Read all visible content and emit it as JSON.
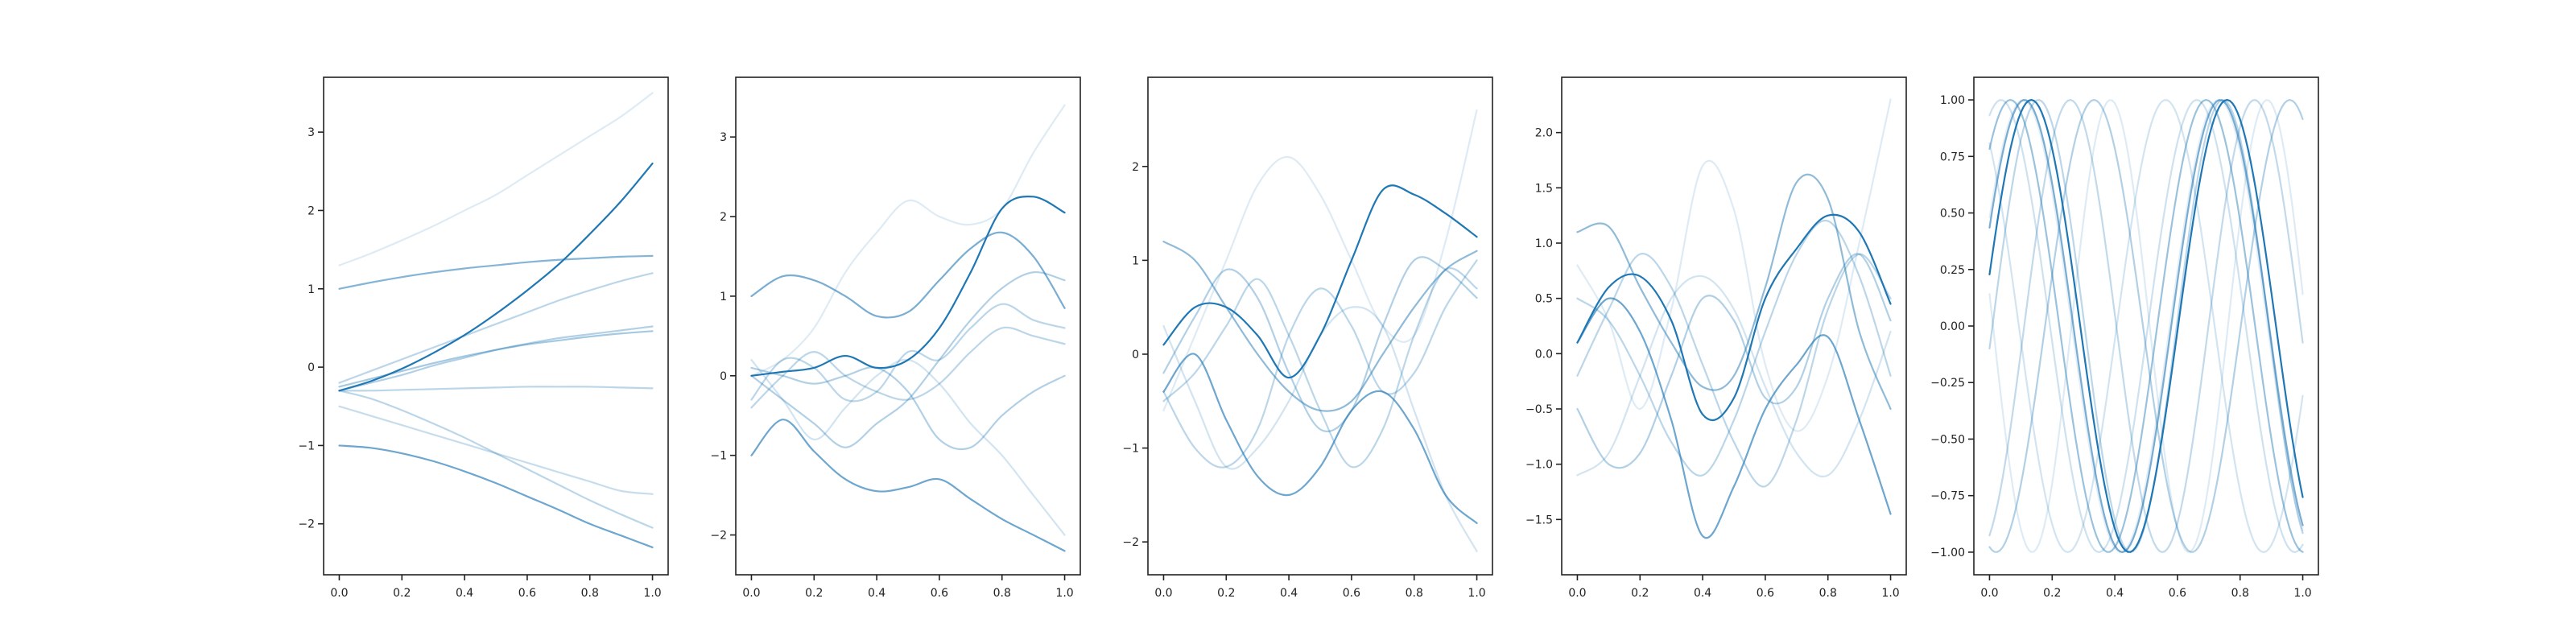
{
  "figure": {
    "background": "#ffffff",
    "axes_color": "#222222",
    "series_color": "#1f77b4"
  },
  "chart_data": [
    {
      "type": "line",
      "title": "",
      "xlabel": "",
      "ylabel": "",
      "xlim": [
        -0.05,
        1.05
      ],
      "ylim": [
        -2.65,
        3.7
      ],
      "xticks": [
        0.0,
        0.2,
        0.4,
        0.6,
        0.8,
        1.0
      ],
      "xtick_labels": [
        "0.0",
        "0.2",
        "0.4",
        "0.6",
        "0.8",
        "1.0"
      ],
      "yticks": [
        -2,
        -1,
        0,
        1,
        2,
        3
      ],
      "ytick_labels": [
        "−2",
        "−1",
        "0",
        "1",
        "2",
        "3"
      ],
      "grid": false,
      "x": [
        0.0,
        0.1,
        0.2,
        0.3,
        0.4,
        0.5,
        0.6,
        0.7,
        0.8,
        0.9,
        1.0
      ],
      "series": [
        {
          "values": [
            1.3,
            1.45,
            1.62,
            1.8,
            2.0,
            2.2,
            2.45,
            2.7,
            2.95,
            3.2,
            3.5
          ],
          "opacity": 0.15
        },
        {
          "values": [
            -0.5,
            -0.62,
            -0.74,
            -0.86,
            -0.98,
            -1.1,
            -1.22,
            -1.34,
            -1.46,
            -1.58,
            -1.62
          ],
          "opacity": 0.25
        },
        {
          "values": [
            -0.3,
            -0.3,
            -0.29,
            -0.28,
            -0.27,
            -0.26,
            -0.25,
            -0.25,
            -0.25,
            -0.26,
            -0.27
          ],
          "opacity": 0.3
        },
        {
          "values": [
            -0.3,
            -0.4,
            -0.55,
            -0.72,
            -0.9,
            -1.1,
            -1.3,
            -1.5,
            -1.7,
            -1.88,
            -2.05
          ],
          "opacity": 0.3
        },
        {
          "values": [
            -0.3,
            -0.2,
            -0.1,
            0.02,
            0.12,
            0.22,
            0.3,
            0.37,
            0.42,
            0.47,
            0.52
          ],
          "opacity": 0.35
        },
        {
          "values": [
            -0.25,
            -0.15,
            -0.05,
            0.05,
            0.14,
            0.22,
            0.29,
            0.34,
            0.39,
            0.43,
            0.46
          ],
          "opacity": 0.4
        },
        {
          "values": [
            -0.2,
            -0.05,
            0.1,
            0.25,
            0.4,
            0.55,
            0.7,
            0.85,
            0.98,
            1.1,
            1.2
          ],
          "opacity": 0.3
        },
        {
          "values": [
            1.0,
            1.08,
            1.15,
            1.21,
            1.26,
            1.3,
            1.34,
            1.37,
            1.39,
            1.41,
            1.42
          ],
          "opacity": 0.55
        },
        {
          "values": [
            -1.0,
            -1.03,
            -1.1,
            -1.2,
            -1.33,
            -1.48,
            -1.65,
            -1.82,
            -2.0,
            -2.15,
            -2.3
          ],
          "opacity": 0.65
        },
        {
          "values": [
            -0.3,
            -0.18,
            -0.02,
            0.18,
            0.41,
            0.68,
            0.98,
            1.31,
            1.7,
            2.12,
            2.6
          ],
          "opacity": 1.0
        }
      ]
    },
    {
      "type": "line",
      "title": "",
      "xlabel": "",
      "ylabel": "",
      "xlim": [
        -0.05,
        1.05
      ],
      "ylim": [
        -2.5,
        3.75
      ],
      "xticks": [
        0.0,
        0.2,
        0.4,
        0.6,
        0.8,
        1.0
      ],
      "xtick_labels": [
        "0.0",
        "0.2",
        "0.4",
        "0.6",
        "0.8",
        "1.0"
      ],
      "yticks": [
        -2,
        -1,
        0,
        1,
        2,
        3
      ],
      "ytick_labels": [
        "−2",
        "−1",
        "0",
        "1",
        "2",
        "3"
      ],
      "grid": false,
      "x": [
        0.0,
        0.1,
        0.2,
        0.3,
        0.4,
        0.5,
        0.6,
        0.7,
        0.8,
        0.9,
        1.0
      ],
      "series": [
        {
          "values": [
            0.0,
            0.2,
            0.6,
            1.3,
            1.8,
            2.2,
            2.0,
            1.9,
            2.1,
            2.8,
            3.4
          ],
          "opacity": 0.15
        },
        {
          "values": [
            0.2,
            -0.3,
            -0.8,
            -0.4,
            0.0,
            0.2,
            -0.1,
            -0.6,
            -1.0,
            -1.5,
            -2.0
          ],
          "opacity": 0.2
        },
        {
          "values": [
            -0.3,
            0.2,
            0.1,
            -0.3,
            -0.2,
            0.3,
            0.2,
            0.6,
            0.9,
            0.7,
            0.6
          ],
          "opacity": 0.3
        },
        {
          "values": [
            -0.4,
            0.0,
            0.3,
            0.0,
            -0.2,
            -0.3,
            -0.1,
            0.3,
            0.6,
            0.5,
            0.4
          ],
          "opacity": 0.3
        },
        {
          "values": [
            0.1,
            0.0,
            -0.1,
            0.0,
            0.1,
            -0.2,
            -0.8,
            -0.9,
            -0.5,
            -0.2,
            0.0
          ],
          "opacity": 0.35
        },
        {
          "values": [
            0.0,
            -0.3,
            -0.6,
            -0.9,
            -0.6,
            -0.3,
            0.2,
            0.7,
            1.1,
            1.3,
            1.2
          ],
          "opacity": 0.35
        },
        {
          "values": [
            1.0,
            1.25,
            1.2,
            1.0,
            0.75,
            0.8,
            1.2,
            1.6,
            1.8,
            1.5,
            0.85
          ],
          "opacity": 0.6
        },
        {
          "values": [
            -1.0,
            -0.55,
            -0.95,
            -1.3,
            -1.45,
            -1.4,
            -1.3,
            -1.55,
            -1.8,
            -2.0,
            -2.2
          ],
          "opacity": 0.65
        },
        {
          "values": [
            0.0,
            0.05,
            0.1,
            0.25,
            0.1,
            0.2,
            0.6,
            1.3,
            2.1,
            2.25,
            2.05
          ],
          "opacity": 1.0
        }
      ]
    },
    {
      "type": "line",
      "title": "",
      "xlabel": "",
      "ylabel": "",
      "xlim": [
        -0.05,
        1.05
      ],
      "ylim": [
        -2.35,
        2.95
      ],
      "xticks": [
        0.0,
        0.2,
        0.4,
        0.6,
        0.8,
        1.0
      ],
      "xtick_labels": [
        "0.0",
        "0.2",
        "0.4",
        "0.6",
        "0.8",
        "1.0"
      ],
      "yticks": [
        -2,
        -1,
        0,
        1,
        2
      ],
      "ytick_labels": [
        "−2",
        "−1",
        "0",
        "1",
        "2"
      ],
      "grid": false,
      "x": [
        0.0,
        0.1,
        0.2,
        0.3,
        0.4,
        0.5,
        0.6,
        0.7,
        0.8,
        0.9,
        1.0
      ],
      "series": [
        {
          "values": [
            -0.6,
            0.2,
            1.0,
            1.8,
            2.1,
            1.7,
            1.0,
            0.3,
            0.2,
            1.2,
            2.6
          ],
          "opacity": 0.15
        },
        {
          "values": [
            0.3,
            -0.5,
            -1.2,
            -1.0,
            -0.5,
            0.2,
            0.5,
            0.3,
            -0.6,
            -1.5,
            -2.1
          ],
          "opacity": 0.2
        },
        {
          "values": [
            -0.5,
            -0.2,
            0.3,
            0.8,
            0.2,
            -0.6,
            -1.2,
            -0.8,
            0.2,
            0.9,
            0.7
          ],
          "opacity": 0.3
        },
        {
          "values": [
            -0.4,
            -1.0,
            -1.2,
            -0.8,
            0.2,
            0.7,
            0.3,
            -0.4,
            -0.2,
            0.5,
            1.0
          ],
          "opacity": 0.3
        },
        {
          "values": [
            -0.2,
            0.4,
            0.9,
            0.6,
            -0.2,
            -0.8,
            -0.6,
            0.3,
            1.0,
            0.9,
            0.6
          ],
          "opacity": 0.35
        },
        {
          "values": [
            1.2,
            1.0,
            0.5,
            0.0,
            -0.4,
            -0.6,
            -0.5,
            0.0,
            0.5,
            0.9,
            1.1
          ],
          "opacity": 0.5
        },
        {
          "values": [
            -0.4,
            0.0,
            -0.7,
            -1.3,
            -1.5,
            -1.2,
            -0.6,
            -0.4,
            -0.8,
            -1.5,
            -1.8
          ],
          "opacity": 0.65
        },
        {
          "values": [
            0.1,
            0.5,
            0.5,
            0.2,
            -0.25,
            0.2,
            1.0,
            1.75,
            1.7,
            1.5,
            1.25
          ],
          "opacity": 1.0
        }
      ]
    },
    {
      "type": "line",
      "title": "",
      "xlabel": "",
      "ylabel": "",
      "xlim": [
        -0.05,
        1.05
      ],
      "ylim": [
        -2.0,
        2.5
      ],
      "xticks": [
        0.0,
        0.2,
        0.4,
        0.6,
        0.8,
        1.0
      ],
      "xtick_labels": [
        "0.0",
        "0.2",
        "0.4",
        "0.6",
        "0.8",
        "1.0"
      ],
      "yticks": [
        -1.5,
        -1.0,
        -0.5,
        0.0,
        0.5,
        1.0,
        1.5,
        2.0
      ],
      "ytick_labels": [
        "−1.5",
        "−1.0",
        "−0.5",
        "0.0",
        "0.5",
        "1.0",
        "1.5",
        "2.0"
      ],
      "grid": false,
      "x": [
        0.0,
        0.1,
        0.2,
        0.3,
        0.4,
        0.5,
        0.6,
        0.7,
        0.8,
        0.9,
        1.0
      ],
      "series": [
        {
          "values": [
            0.8,
            0.3,
            -0.5,
            0.4,
            1.7,
            1.3,
            -0.1,
            -0.7,
            -0.2,
            1.0,
            2.3
          ],
          "opacity": 0.15
        },
        {
          "values": [
            -1.1,
            -0.9,
            -0.2,
            0.5,
            0.7,
            0.4,
            -0.3,
            -0.9,
            -1.1,
            -0.6,
            0.2
          ],
          "opacity": 0.2
        },
        {
          "values": [
            -0.2,
            0.4,
            0.9,
            0.6,
            -0.1,
            -0.8,
            -1.2,
            -0.6,
            0.4,
            0.9,
            0.5
          ],
          "opacity": 0.3
        },
        {
          "values": [
            0.5,
            0.3,
            -0.2,
            -0.8,
            -1.1,
            -0.6,
            0.2,
            0.9,
            1.2,
            0.7,
            -0.2
          ],
          "opacity": 0.3
        },
        {
          "values": [
            -0.5,
            -1.0,
            -0.9,
            -0.2,
            0.5,
            0.3,
            -0.4,
            -0.3,
            0.5,
            0.9,
            0.3
          ],
          "opacity": 0.35
        },
        {
          "values": [
            1.1,
            1.15,
            0.6,
            0.1,
            -0.3,
            -0.2,
            0.6,
            1.55,
            1.4,
            0.2,
            -0.5
          ],
          "opacity": 0.5
        },
        {
          "values": [
            0.1,
            0.5,
            0.2,
            -0.6,
            -1.65,
            -1.2,
            -0.5,
            -0.1,
            0.15,
            -0.6,
            -1.45
          ],
          "opacity": 0.65
        },
        {
          "values": [
            0.1,
            0.6,
            0.7,
            0.3,
            -0.55,
            -0.4,
            0.5,
            0.95,
            1.25,
            1.1,
            0.45
          ],
          "opacity": 1.0
        }
      ]
    },
    {
      "type": "line",
      "title": "",
      "xlabel": "",
      "ylabel": "",
      "xlim": [
        -0.05,
        1.05
      ],
      "ylim": [
        -1.1,
        1.1
      ],
      "xticks": [
        0.0,
        0.2,
        0.4,
        0.6,
        0.8,
        1.0
      ],
      "xtick_labels": [
        "0.0",
        "0.2",
        "0.4",
        "0.6",
        "0.8",
        "1.0"
      ],
      "yticks": [
        -1.0,
        -0.75,
        -0.5,
        -0.25,
        0.0,
        0.25,
        0.5,
        0.75,
        1.0
      ],
      "ytick_labels": [
        "−1.00",
        "−0.75",
        "−0.50",
        "−0.25",
        "0.00",
        "0.25",
        "0.50",
        "0.75",
        "1.00"
      ],
      "grid": false,
      "series_kind": "sinusoid",
      "x_start": 0.0,
      "x_end": 1.0,
      "series": [
        {
          "frequency": 1.6,
          "phase": 0.5,
          "opacity": 0.12
        },
        {
          "frequency": 2.0,
          "phase": 3.0,
          "opacity": 0.15
        },
        {
          "frequency": 1.6,
          "phase": 2.2,
          "opacity": 0.2
        },
        {
          "frequency": 1.6,
          "phase": 1.2,
          "opacity": 0.22
        },
        {
          "frequency": 1.7,
          "phase": 5.1,
          "opacity": 0.28
        },
        {
          "frequency": 1.7,
          "phase": -0.1,
          "opacity": 0.3
        },
        {
          "frequency": 1.6,
          "phase": 4.5,
          "opacity": 0.35
        },
        {
          "frequency": 1.6,
          "phase": 0.9,
          "opacity": 0.45
        },
        {
          "frequency": 1.6,
          "phase": 0.45,
          "opacity": 0.6
        },
        {
          "frequency": 1.6,
          "phase": 0.23,
          "opacity": 1.0
        }
      ]
    }
  ]
}
